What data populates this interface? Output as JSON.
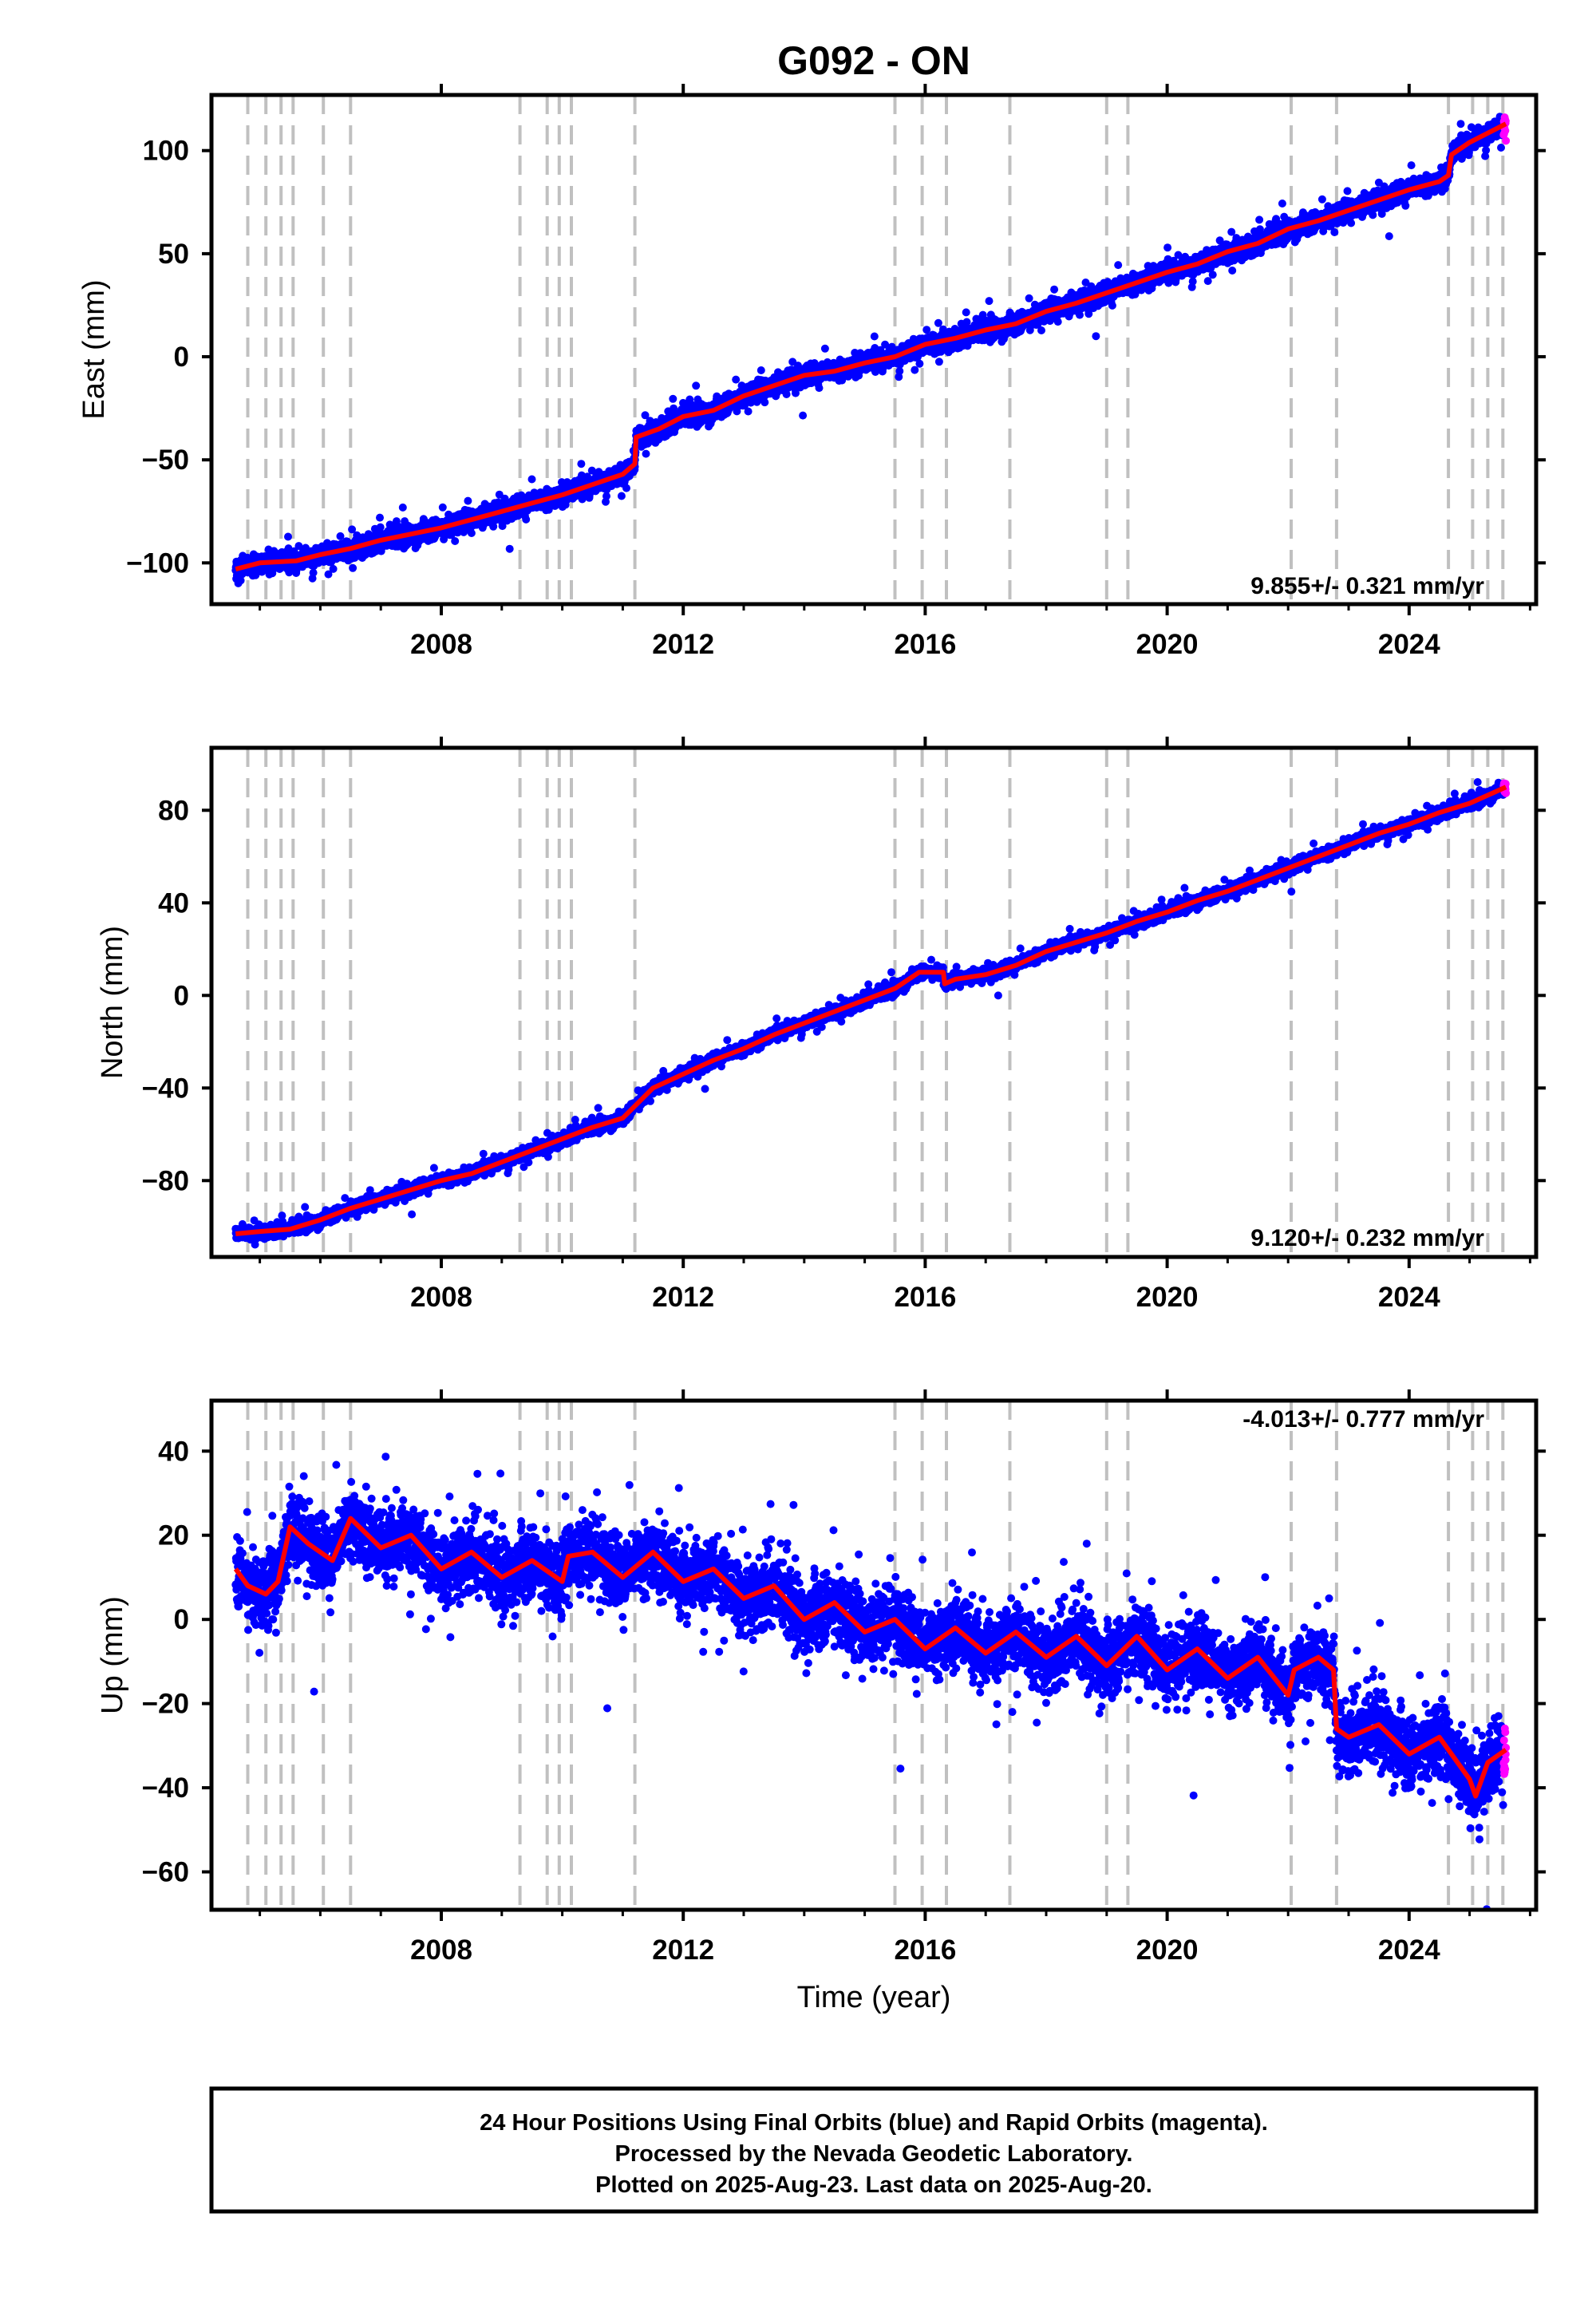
{
  "title": "G092 - ON",
  "colors": {
    "final": "#0000ff",
    "rapid": "#ff00ff",
    "model": "#ff0000",
    "grid": "#c0c0c0"
  },
  "chart_data": [
    {
      "type": "scatter",
      "name": "east",
      "ylabel": "East (mm)",
      "rate_label": "9.855+/- 0.321 mm/yr",
      "rate_position": "bottom-right",
      "xlim": [
        2004.2,
        2026.1
      ],
      "ylim": [
        -120,
        127
      ],
      "yticks": [
        -100,
        -50,
        0,
        50,
        100
      ],
      "yticklabels": [
        "−100",
        "−50",
        "0",
        "50",
        "100"
      ],
      "xticks": [
        2008,
        2012,
        2016,
        2020,
        2024
      ],
      "xticklabels": [
        "2008",
        "2012",
        "2016",
        "2020",
        "2024"
      ],
      "model_points": [
        [
          2004.6,
          -103
        ],
        [
          2005.0,
          -100
        ],
        [
          2005.6,
          -99
        ],
        [
          2006.0,
          -96
        ],
        [
          2006.5,
          -93
        ],
        [
          2007.0,
          -89
        ],
        [
          2007.5,
          -86
        ],
        [
          2008.0,
          -83
        ],
        [
          2008.5,
          -79
        ],
        [
          2009.0,
          -75
        ],
        [
          2009.5,
          -71
        ],
        [
          2010.0,
          -67
        ],
        [
          2010.5,
          -62
        ],
        [
          2011.0,
          -57
        ],
        [
          2011.2,
          -52
        ],
        [
          2011.22,
          -39
        ],
        [
          2011.6,
          -35
        ],
        [
          2012.0,
          -29
        ],
        [
          2012.5,
          -26
        ],
        [
          2013.0,
          -19
        ],
        [
          2013.5,
          -14
        ],
        [
          2014.0,
          -9
        ],
        [
          2014.5,
          -7
        ],
        [
          2015.0,
          -3
        ],
        [
          2015.5,
          0
        ],
        [
          2016.0,
          6
        ],
        [
          2016.5,
          9
        ],
        [
          2017.0,
          13
        ],
        [
          2017.5,
          16
        ],
        [
          2018.0,
          22
        ],
        [
          2018.5,
          26
        ],
        [
          2019.0,
          31
        ],
        [
          2019.5,
          36
        ],
        [
          2020.0,
          41
        ],
        [
          2020.5,
          45
        ],
        [
          2021.0,
          51
        ],
        [
          2021.5,
          55
        ],
        [
          2022.0,
          62
        ],
        [
          2022.5,
          66
        ],
        [
          2023.0,
          71
        ],
        [
          2023.5,
          76
        ],
        [
          2024.0,
          81
        ],
        [
          2024.5,
          85
        ],
        [
          2024.65,
          88
        ],
        [
          2024.7,
          98
        ],
        [
          2025.0,
          104
        ],
        [
          2025.6,
          113
        ]
      ],
      "scatter_sd": 4.5,
      "rapid_last_points": 12
    },
    {
      "type": "scatter",
      "name": "north",
      "ylabel": "North (mm)",
      "rate_label": "9.120+/- 0.232 mm/yr",
      "rate_position": "bottom-right",
      "xlim": [
        2004.2,
        2026.1
      ],
      "ylim": [
        -113,
        107
      ],
      "yticks": [
        -80,
        -40,
        0,
        40,
        80
      ],
      "yticklabels": [
        "−80",
        "−40",
        "0",
        "40",
        "80"
      ],
      "xticks": [
        2008,
        2012,
        2016,
        2020,
        2024
      ],
      "xticklabels": [
        "2008",
        "2012",
        "2016",
        "2020",
        "2024"
      ],
      "model_points": [
        [
          2004.6,
          -103
        ],
        [
          2005.0,
          -102
        ],
        [
          2005.5,
          -101
        ],
        [
          2006.0,
          -97
        ],
        [
          2006.5,
          -92
        ],
        [
          2007.0,
          -88
        ],
        [
          2007.5,
          -84
        ],
        [
          2008.0,
          -80
        ],
        [
          2008.5,
          -77
        ],
        [
          2009.0,
          -72
        ],
        [
          2009.5,
          -67
        ],
        [
          2010.0,
          -62
        ],
        [
          2010.5,
          -57
        ],
        [
          2011.0,
          -53
        ],
        [
          2011.5,
          -40
        ],
        [
          2012.0,
          -34
        ],
        [
          2012.5,
          -28
        ],
        [
          2013.0,
          -23
        ],
        [
          2013.5,
          -17
        ],
        [
          2014.0,
          -12
        ],
        [
          2014.5,
          -7
        ],
        [
          2015.0,
          -2
        ],
        [
          2015.5,
          3
        ],
        [
          2015.9,
          10
        ],
        [
          2016.3,
          10
        ],
        [
          2016.32,
          5
        ],
        [
          2016.5,
          7
        ],
        [
          2017.0,
          9
        ],
        [
          2017.5,
          13
        ],
        [
          2018.0,
          19
        ],
        [
          2018.5,
          23
        ],
        [
          2019.0,
          27
        ],
        [
          2019.5,
          32
        ],
        [
          2020.0,
          36
        ],
        [
          2020.5,
          41
        ],
        [
          2021.0,
          45
        ],
        [
          2021.5,
          50
        ],
        [
          2022.0,
          55
        ],
        [
          2022.5,
          60
        ],
        [
          2023.0,
          65
        ],
        [
          2023.5,
          70
        ],
        [
          2024.0,
          74
        ],
        [
          2024.5,
          79
        ],
        [
          2025.0,
          83
        ],
        [
          2025.6,
          90
        ]
      ],
      "scatter_sd": 2.5,
      "rapid_last_points": 12
    },
    {
      "type": "scatter",
      "name": "up",
      "ylabel": "Up (mm)",
      "rate_label": "-4.013+/- 0.777 mm/yr",
      "rate_position": "top-right",
      "xlabel": "Time (year)",
      "xlim": [
        2004.2,
        2026.1
      ],
      "ylim": [
        -69,
        52
      ],
      "yticks": [
        -60,
        -40,
        -20,
        0,
        20,
        40
      ],
      "yticklabels": [
        "−60",
        "−40",
        "−20",
        "0",
        "20",
        "40"
      ],
      "xticks": [
        2008,
        2012,
        2016,
        2020,
        2024
      ],
      "xticklabels": [
        "2008",
        "2012",
        "2016",
        "2020",
        "2024"
      ],
      "model_points": [
        [
          2004.6,
          12
        ],
        [
          2004.8,
          8
        ],
        [
          2005.1,
          6
        ],
        [
          2005.3,
          9
        ],
        [
          2005.5,
          22
        ],
        [
          2005.8,
          18
        ],
        [
          2006.2,
          14
        ],
        [
          2006.5,
          24
        ],
        [
          2007.0,
          17
        ],
        [
          2007.5,
          20
        ],
        [
          2008.0,
          12
        ],
        [
          2008.5,
          16
        ],
        [
          2009.0,
          10
        ],
        [
          2009.5,
          14
        ],
        [
          2010.0,
          9
        ],
        [
          2010.1,
          15
        ],
        [
          2010.5,
          16
        ],
        [
          2011.0,
          10
        ],
        [
          2011.5,
          16
        ],
        [
          2012.0,
          9
        ],
        [
          2012.5,
          12
        ],
        [
          2013.0,
          5
        ],
        [
          2013.5,
          8
        ],
        [
          2014.0,
          0
        ],
        [
          2014.5,
          4
        ],
        [
          2015.0,
          -3
        ],
        [
          2015.5,
          0
        ],
        [
          2016.0,
          -7
        ],
        [
          2016.5,
          -2
        ],
        [
          2017.0,
          -8
        ],
        [
          2017.5,
          -3
        ],
        [
          2018.0,
          -9
        ],
        [
          2018.5,
          -4
        ],
        [
          2019.0,
          -11
        ],
        [
          2019.5,
          -4
        ],
        [
          2020.0,
          -12
        ],
        [
          2020.5,
          -7
        ],
        [
          2021.0,
          -14
        ],
        [
          2021.5,
          -9
        ],
        [
          2022.0,
          -18
        ],
        [
          2022.1,
          -12
        ],
        [
          2022.5,
          -9
        ],
        [
          2022.75,
          -12
        ],
        [
          2022.8,
          -26
        ],
        [
          2023.0,
          -28
        ],
        [
          2023.5,
          -25
        ],
        [
          2024.0,
          -32
        ],
        [
          2024.5,
          -28
        ],
        [
          2024.7,
          -32
        ],
        [
          2025.0,
          -38
        ],
        [
          2025.1,
          -42
        ],
        [
          2025.3,
          -34
        ],
        [
          2025.6,
          -31
        ]
      ],
      "scatter_sd": 8.0,
      "rapid_last_points": 12
    }
  ],
  "step_epochs": [
    2004.8,
    2005.1,
    2005.35,
    2005.55,
    2006.05,
    2006.5,
    2009.3,
    2009.75,
    2009.95,
    2010.15,
    2011.2,
    2015.5,
    2015.95,
    2016.35,
    2017.4,
    2019.0,
    2019.35,
    2022.05,
    2022.8,
    2024.65,
    2025.05,
    2025.3,
    2025.55
  ],
  "footer": {
    "line1": "24 Hour Positions Using Final Orbits (blue) and Rapid Orbits (magenta).",
    "line2": "Processed by the Nevada Geodetic Laboratory.",
    "line3": "Plotted on 2025-Aug-23. Last data on 2025-Aug-20."
  }
}
